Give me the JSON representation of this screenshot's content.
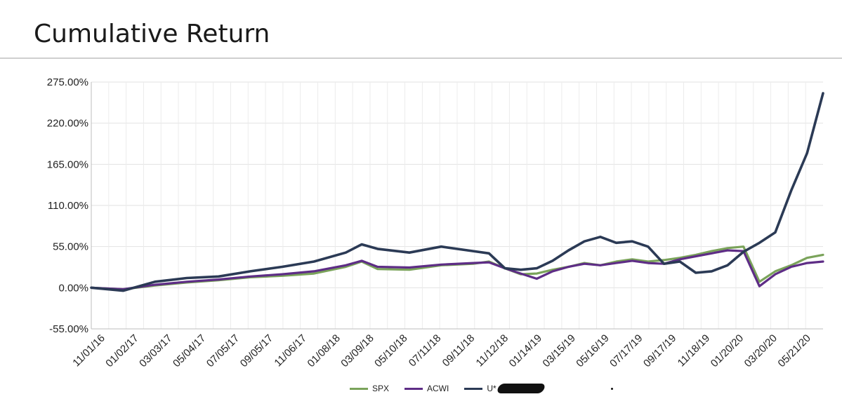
{
  "page": {
    "title": "Cumulative Return"
  },
  "chart_data": {
    "type": "line",
    "title": "Cumulative Return",
    "xlabel": "",
    "ylabel": "",
    "ylim": [
      -55,
      275
    ],
    "y_ticks": [
      "275.00%",
      "220.00%",
      "165.00%",
      "110.00%",
      "55.00%",
      "0.00%",
      "-55.00%"
    ],
    "x_tick_labels": [
      "11/01/16",
      "01/02/17",
      "03/03/17",
      "05/04/17",
      "07/05/17",
      "09/05/17",
      "11/06/17",
      "01/08/18",
      "03/09/18",
      "05/10/18",
      "07/11/18",
      "09/11/18",
      "11/12/18",
      "01/14/19",
      "03/15/19",
      "05/16/19",
      "07/17/19",
      "09/17/19",
      "11/18/19",
      "01/20/20",
      "03/20/20",
      "05/21/20"
    ],
    "grid": true,
    "legend": "bottom",
    "x": [
      "2016-09",
      "2016-11",
      "2017-01",
      "2017-03",
      "2017-05",
      "2017-07",
      "2017-09",
      "2017-11",
      "2018-01",
      "2018-02",
      "2018-03",
      "2018-05",
      "2018-07",
      "2018-09",
      "2018-10",
      "2018-11",
      "2018-12",
      "2019-01",
      "2019-02",
      "2019-03",
      "2019-04",
      "2019-05",
      "2019-06",
      "2019-07",
      "2019-08",
      "2019-09",
      "2019-10",
      "2019-11",
      "2019-12",
      "2020-01",
      "2020-02",
      "2020-03",
      "2020-04",
      "2020-05",
      "2020-06",
      "2020-07"
    ],
    "series": [
      {
        "name": "SPX",
        "color": "#7aa35a",
        "values": [
          0,
          -2,
          3,
          7,
          10,
          14,
          16,
          19,
          28,
          35,
          25,
          24,
          30,
          32,
          35,
          26,
          18,
          19,
          24,
          28,
          33,
          30,
          35,
          38,
          35,
          37,
          40,
          44,
          49,
          53,
          55,
          8,
          22,
          30,
          40,
          44
        ]
      },
      {
        "name": "ACWI",
        "color": "#5e2d86",
        "values": [
          0,
          -2,
          4,
          8,
          11,
          15,
          18,
          22,
          30,
          36,
          28,
          27,
          31,
          33,
          34,
          26,
          19,
          12,
          22,
          28,
          32,
          30,
          33,
          36,
          33,
          32,
          38,
          42,
          46,
          50,
          49,
          2,
          18,
          28,
          33,
          35
        ]
      },
      {
        "name": "U*",
        "color": "#2b3a55",
        "values": [
          0,
          -4,
          8,
          13,
          15,
          22,
          28,
          35,
          47,
          58,
          52,
          47,
          55,
          49,
          46,
          26,
          24,
          26,
          36,
          50,
          62,
          68,
          60,
          62,
          55,
          32,
          35,
          20,
          22,
          30,
          48,
          60,
          74,
          130,
          180,
          260
        ]
      }
    ]
  }
}
